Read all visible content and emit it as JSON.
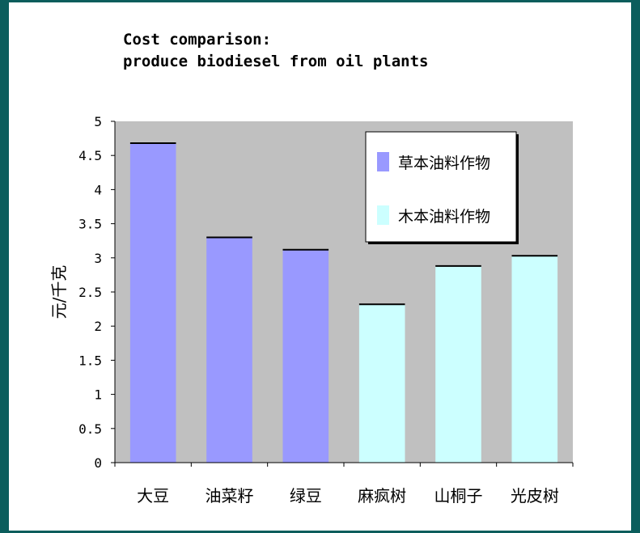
{
  "chart_data": {
    "type": "bar",
    "title_lines": [
      "Cost comparison:",
      "produce biodiesel from oil plants"
    ],
    "ylabel": "元/千克",
    "xlabel": "",
    "categories": [
      "大豆",
      "油菜籽",
      "绿豆",
      "麻疯树",
      "山桐子",
      "光皮树"
    ],
    "values": [
      4.68,
      3.3,
      3.12,
      2.32,
      2.88,
      3.03
    ],
    "group": [
      0,
      0,
      0,
      1,
      1,
      1
    ],
    "series": [
      {
        "name": "草本油料作物",
        "color": "#9999ff"
      },
      {
        "name": "木本油料作物",
        "color": "#ccffff"
      }
    ],
    "ylim": [
      0,
      5
    ],
    "yticks": [
      "0",
      "0.5",
      "1",
      "1.5",
      "2",
      "2.5",
      "3",
      "3.5",
      "4",
      "4.5",
      "5"
    ],
    "legend_position": "top-right",
    "plot_background": "#c0c0c0",
    "grid": false
  }
}
